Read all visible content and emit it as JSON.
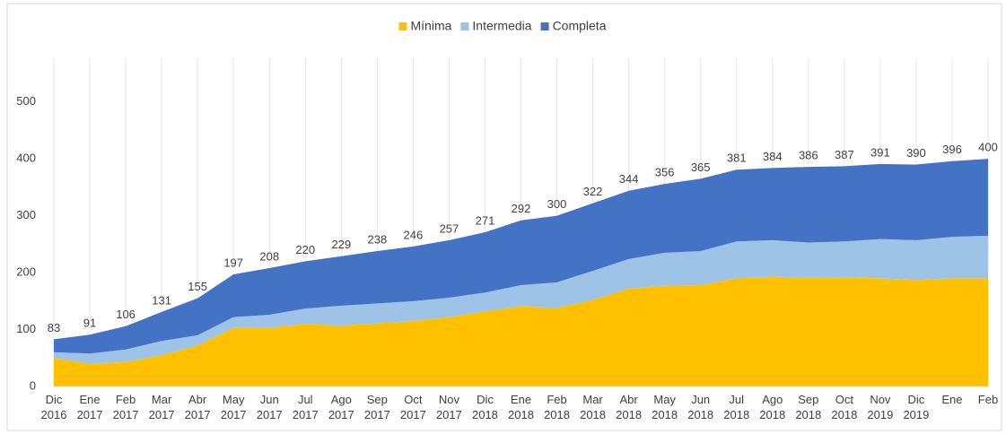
{
  "chart_data": {
    "type": "stacked_area",
    "categories": [
      "Dic\n2016",
      "Ene\n2017",
      "Feb\n2017",
      "Mar\n2017",
      "Abr\n2017",
      "May\n2017",
      "Jun\n2017",
      "Jul\n2017",
      "Ago\n2017",
      "Sep\n2017",
      "Oct\n2017",
      "Nov\n2017",
      "Dic\n2018",
      "Ene\n2018",
      "Feb\n2018",
      "Mar\n2018",
      "Abr\n2018",
      "May\n2018",
      "Jun\n2018",
      "Jul\n2018",
      "Ago\n2018",
      "Sep\n2018",
      "Oct\n2018",
      "Nov\n2019",
      "Dic\n2019",
      "Ene",
      "Feb"
    ],
    "series": [
      {
        "name": "Mínima",
        "color": "#ffc000",
        "values": [
          50,
          40,
          43,
          55,
          72,
          103,
          103,
          110,
          107,
          111,
          115,
          122,
          132,
          141,
          138,
          152,
          172,
          177,
          178,
          190,
          193,
          191,
          192,
          190,
          187,
          190,
          190
        ]
      },
      {
        "name": "Intermedia",
        "color": "#9dc3e6",
        "values": [
          10,
          18,
          22,
          25,
          18,
          19,
          23,
          27,
          35,
          35,
          35,
          34,
          33,
          37,
          45,
          51,
          52,
          58,
          60,
          65,
          64,
          62,
          63,
          69,
          70,
          73,
          75
        ]
      },
      {
        "name": "Completa",
        "color": "#4472c4",
        "values": [
          23,
          33,
          41,
          51,
          65,
          75,
          82,
          83,
          87,
          92,
          96,
          101,
          106,
          114,
          117,
          119,
          120,
          121,
          127,
          126,
          127,
          133,
          132,
          132,
          133,
          133,
          135
        ]
      }
    ],
    "total_labels": [
      83,
      91,
      106,
      131,
      155,
      197,
      208,
      220,
      229,
      238,
      246,
      257,
      271,
      292,
      300,
      322,
      344,
      356,
      365,
      381,
      384,
      386,
      387,
      391,
      390,
      396,
      400
    ],
    "ylim": [
      0,
      550
    ],
    "yticks": [
      0,
      100,
      200,
      300,
      400,
      500
    ],
    "grid": true,
    "legend": "top"
  }
}
